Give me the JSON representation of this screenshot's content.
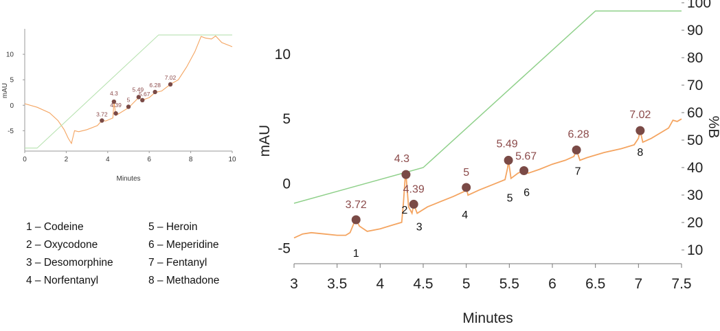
{
  "chart_data": [
    {
      "type": "line",
      "title": "",
      "xlabel": "Minutes",
      "ylabel": "mAU",
      "xlim": [
        0,
        10
      ],
      "ylim": [
        -9,
        15
      ],
      "xticks": [
        0,
        2,
        4,
        6,
        8,
        10
      ],
      "yticks": [
        -5,
        0,
        5,
        10
      ],
      "grid": false,
      "series": [
        {
          "role": "absorbance",
          "color": "#f4a460",
          "x": [
            0,
            0.6,
            1.2,
            1.6,
            1.9,
            2.1,
            2.25,
            2.4,
            2.6,
            3.0,
            3.5,
            3.72,
            3.9,
            4.25,
            4.3,
            4.39,
            4.6,
            5.0,
            5.49,
            5.67,
            6.0,
            6.28,
            6.6,
            7.02,
            7.4,
            7.8,
            8.2,
            8.5,
            8.7,
            9.0,
            9.2,
            9.5,
            10
          ],
          "y": [
            0.3,
            -0.4,
            -1.5,
            -3.0,
            -4.8,
            -6.5,
            -7.5,
            -5.0,
            -5.2,
            -4.8,
            -4.0,
            -3.0,
            -3.1,
            -2.5,
            0.7,
            -2.0,
            -1.5,
            -0.5,
            1.5,
            1.0,
            1.5,
            2.5,
            2.8,
            4.1,
            5.0,
            7.5,
            10.5,
            13.5,
            13.2,
            13.0,
            13.6,
            12.3,
            11.5
          ]
        },
        {
          "role": "gradient",
          "color": "#b7e2b0",
          "x": [
            0,
            0.6,
            6.45,
            10
          ],
          "y": [
            -8.4,
            -8.4,
            13.8,
            13.8
          ]
        }
      ],
      "peaks": [
        {
          "label": "3.72",
          "x": 3.72,
          "y": -3.0
        },
        {
          "label": "4.3",
          "x": 4.3,
          "y": 0.7
        },
        {
          "label": "4.39",
          "x": 4.39,
          "y": -1.6
        },
        {
          "label": "5",
          "x": 5.0,
          "y": -0.3
        },
        {
          "label": "5.49",
          "x": 5.49,
          "y": 1.6
        },
        {
          "label": "5.67",
          "x": 5.67,
          "y": 1.0
        },
        {
          "label": "6.28",
          "x": 6.28,
          "y": 2.6
        },
        {
          "label": "7.02",
          "x": 7.02,
          "y": 4.1
        }
      ]
    },
    {
      "type": "line",
      "title": "",
      "xlabel": "Minutes",
      "ylabel": "mAU",
      "y2label": "%B",
      "xlim": [
        3,
        7.5
      ],
      "ylim": [
        -6.2,
        14.2
      ],
      "y2lim": [
        5,
        101
      ],
      "xticks": [
        "3",
        "3.5",
        "4",
        "4.5",
        "5",
        "5.5",
        "6",
        "6.5",
        "7",
        "7.5"
      ],
      "yticks": [
        "-5",
        "0",
        "5",
        "10"
      ],
      "y2ticks": [
        "10",
        "20",
        "30",
        "40",
        "50",
        "60",
        "70",
        "80",
        "90",
        "100"
      ],
      "grid": false,
      "series": [
        {
          "role": "absorbance",
          "color": "#f4a460",
          "x": [
            3.0,
            3.1,
            3.2,
            3.35,
            3.5,
            3.6,
            3.65,
            3.7,
            3.72,
            3.76,
            3.85,
            4.0,
            4.15,
            4.25,
            4.27,
            4.29,
            4.3,
            4.33,
            4.37,
            4.39,
            4.43,
            4.55,
            4.7,
            4.85,
            4.98,
            5.0,
            5.02,
            5.15,
            5.3,
            5.45,
            5.48,
            5.49,
            5.52,
            5.6,
            5.67,
            5.72,
            5.85,
            6.0,
            6.15,
            6.25,
            6.28,
            6.32,
            6.4,
            6.6,
            6.8,
            6.95,
            7.0,
            7.02,
            7.05,
            7.15,
            7.25,
            7.35,
            7.4,
            7.45,
            7.5
          ],
          "y": [
            -4.2,
            -3.9,
            -3.8,
            -3.9,
            -4.0,
            -4.0,
            -3.8,
            -3.0,
            -2.8,
            -3.3,
            -3.7,
            -3.5,
            -3.2,
            -3.0,
            -1.5,
            0.4,
            0.7,
            -1.8,
            -2.3,
            -1.6,
            -2.3,
            -1.8,
            -1.4,
            -1.0,
            -0.6,
            -0.3,
            -0.9,
            -0.5,
            -0.1,
            0.3,
            1.2,
            1.8,
            0.4,
            0.8,
            1.0,
            0.8,
            1.1,
            1.5,
            1.8,
            2.1,
            2.6,
            1.8,
            2.0,
            2.4,
            2.7,
            3.0,
            3.5,
            4.1,
            3.2,
            3.5,
            3.9,
            4.3,
            4.9,
            4.8,
            5.0
          ]
        },
        {
          "role": "gradient",
          "color": "#8fd08a",
          "y_axis": "%B",
          "x": [
            3.0,
            4.5,
            6.5,
            7.5
          ],
          "y": [
            27,
            40,
            97,
            97
          ]
        }
      ],
      "peaks": [
        {
          "label": "3.72",
          "number": "1",
          "x": 3.72,
          "y": -2.8
        },
        {
          "label": "4.3",
          "number": "2",
          "x": 4.3,
          "y": 0.7
        },
        {
          "label": "4.39",
          "number": "3",
          "x": 4.39,
          "y": -1.6
        },
        {
          "label": "5",
          "number": "4",
          "x": 5.0,
          "y": -0.3
        },
        {
          "label": "5.49",
          "number": "5",
          "x": 5.49,
          "y": 1.8
        },
        {
          "label": "5.67",
          "number": "6",
          "x": 5.67,
          "y": 1.0
        },
        {
          "label": "6.28",
          "number": "7",
          "x": 6.28,
          "y": 2.6
        },
        {
          "label": "7.02",
          "number": "8",
          "x": 7.02,
          "y": 4.1
        }
      ]
    }
  ],
  "legend": [
    "1 – Codeine",
    "2 – Oxycodone",
    "3 – Desomorphine",
    "4 – Norfentanyl",
    "5 – Heroin",
    "6 – Meperidine",
    "7 – Fentanyl",
    "8 – Methadone"
  ],
  "colors": {
    "trace": "#f4a460",
    "gradient_small": "#b7e2b0",
    "gradient_large": "#8fd08a",
    "peak_marker": "#7a4a46",
    "peak_label": "#8b4a4a",
    "axis": "#555555"
  }
}
